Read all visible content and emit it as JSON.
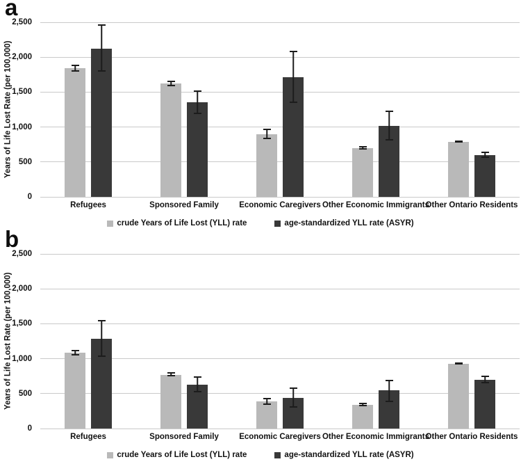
{
  "chart_data": [
    {
      "type": "bar",
      "label": "a",
      "ylabel": "Years of Life Lost Rate (per 100,000)",
      "ylim": [
        0,
        2500
      ],
      "ytick_values": [
        0,
        500,
        1000,
        1500,
        2000,
        2500
      ],
      "yticks": [
        "0",
        "500",
        "1,000",
        "1,500",
        "2,000",
        "2,500"
      ],
      "grid": "horizontal",
      "legend_position": "bottom-center",
      "categories": [
        "Refugees",
        "Sponsored Family",
        "Economic Caregivers",
        "Other Economic Immigrants",
        "Other Ontario Residents"
      ],
      "series": [
        {
          "name": "crude Years of Life Lost (YLL) rate",
          "color": "#b9b9b9",
          "values": [
            1840,
            1620,
            900,
            700,
            790
          ],
          "err_low": [
            1795,
            1580,
            825,
            675,
            778
          ],
          "err_high": [
            1890,
            1660,
            975,
            725,
            802
          ]
        },
        {
          "name": "age-standardized YLL rate (ASYR)",
          "color": "#393939",
          "values": [
            2120,
            1355,
            1715,
            1015,
            600
          ],
          "err_low": [
            1790,
            1190,
            1340,
            810,
            558
          ],
          "err_high": [
            2470,
            1520,
            2095,
            1240,
            650
          ]
        }
      ]
    },
    {
      "type": "bar",
      "label": "b",
      "ylabel": "Years of Life Lost Rate (per 100,000)",
      "ylim": [
        0,
        2500
      ],
      "ytick_values": [
        0,
        500,
        1000,
        1500,
        2000,
        2500
      ],
      "yticks": [
        "0",
        "500",
        "1,000",
        "1,500",
        "2,000",
        "2,500"
      ],
      "grid": "horizontal",
      "legend_position": "bottom-center",
      "categories": [
        "Refugees",
        "Sponsored Family",
        "Economic Caregivers",
        "Other Economic Immigrants",
        "Other Ontario Residents"
      ],
      "series": [
        {
          "name": "crude Years of Life Lost (YLL) rate",
          "color": "#b9b9b9",
          "values": [
            1085,
            770,
            390,
            340,
            930
          ],
          "err_low": [
            1045,
            745,
            340,
            320,
            915
          ],
          "err_high": [
            1130,
            805,
            440,
            365,
            945
          ]
        },
        {
          "name": "age-standardized YLL rate (ASYR)",
          "color": "#393939",
          "values": [
            1285,
            630,
            440,
            550,
            700
          ],
          "err_low": [
            1030,
            520,
            300,
            380,
            650
          ],
          "err_high": [
            1550,
            750,
            590,
            700,
            760
          ]
        }
      ]
    }
  ]
}
